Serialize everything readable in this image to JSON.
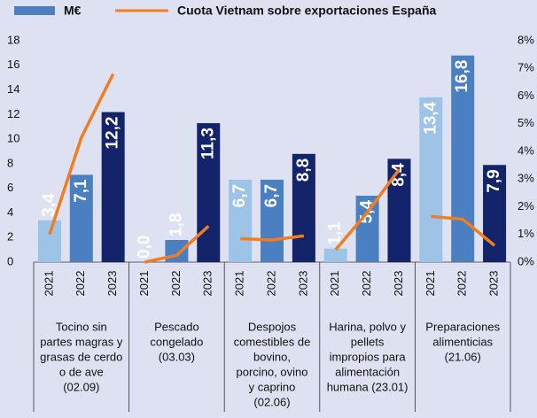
{
  "chart_data": {
    "type": "bar",
    "groups": [
      {
        "lines": [
          "Tocino sin",
          "partes magras y",
          "grasas de cerdo",
          "o de ave",
          "(02.09)"
        ],
        "categories": [
          "2021",
          "2022",
          "2023"
        ]
      },
      {
        "lines": [
          "Pescado",
          "congelado",
          "(03.03)"
        ],
        "categories": [
          "2021",
          "2022",
          "2023"
        ]
      },
      {
        "lines": [
          "Despojos",
          "comestibles de",
          "bovino,",
          "porcino, ovino",
          "y caprino",
          "(02.06)"
        ],
        "categories": [
          "2021",
          "2022",
          "2023"
        ]
      },
      {
        "lines": [
          "Harina, polvo y",
          "pellets",
          "impropios para",
          "alimentación",
          "humana (23.01)"
        ],
        "categories": [
          "2021",
          "2022",
          "2023"
        ]
      },
      {
        "lines": [
          "Preparaciones",
          "alimenticias",
          "(21.06)"
        ],
        "categories": [
          "2021",
          "2022",
          "2023"
        ]
      }
    ],
    "series": [
      {
        "name": "M€",
        "color": "#4a7fc1",
        "bar_colors": [
          "#9dc3e6",
          "#4a7fc1",
          "#13246a",
          "#9dc3e6",
          "#4a7fc1",
          "#13246a",
          "#9dc3e6",
          "#4a7fc1",
          "#13246a",
          "#9dc3e6",
          "#4a7fc1",
          "#13246a",
          "#9dc3e6",
          "#4a7fc1",
          "#13246a"
        ],
        "values": [
          3.4,
          7.1,
          12.2,
          0.0,
          1.8,
          11.3,
          6.7,
          6.7,
          8.8,
          1.1,
          5.4,
          8.4,
          13.4,
          16.8,
          7.9
        ],
        "value_labels": [
          "3,4",
          "7,1",
          "12,2",
          "0,0",
          "1,8",
          "11,3",
          "6,7",
          "6,7",
          "8,8",
          "1,1",
          "5,4",
          "8,4",
          "13,4",
          "16,8",
          "7,9"
        ]
      },
      {
        "name": "Cuota Vietnam sobre exportaciones España",
        "type": "line",
        "axis": "y2",
        "color": "#f07d20",
        "values": [
          1.0,
          4.5,
          6.8,
          0.0,
          0.25,
          1.3,
          0.85,
          0.8,
          0.95,
          0.45,
          1.8,
          3.35,
          1.65,
          1.55,
          0.6
        ]
      }
    ],
    "ylim": [
      0,
      18
    ],
    "yticks": [
      0,
      2,
      4,
      6,
      8,
      10,
      12,
      14,
      16,
      18
    ],
    "y2lim": [
      0,
      8
    ],
    "y2ticks": [
      {
        "value": 0,
        "label": "0%"
      },
      {
        "value": 1,
        "label": "1%"
      },
      {
        "value": 2,
        "label": "2%"
      },
      {
        "value": 3,
        "label": "3%"
      },
      {
        "value": 4,
        "label": "4%"
      },
      {
        "value": 5,
        "label": "5%"
      },
      {
        "value": 6,
        "label": "6%"
      },
      {
        "value": 7,
        "label": "7%"
      },
      {
        "value": 8,
        "label": "8%"
      }
    ]
  }
}
